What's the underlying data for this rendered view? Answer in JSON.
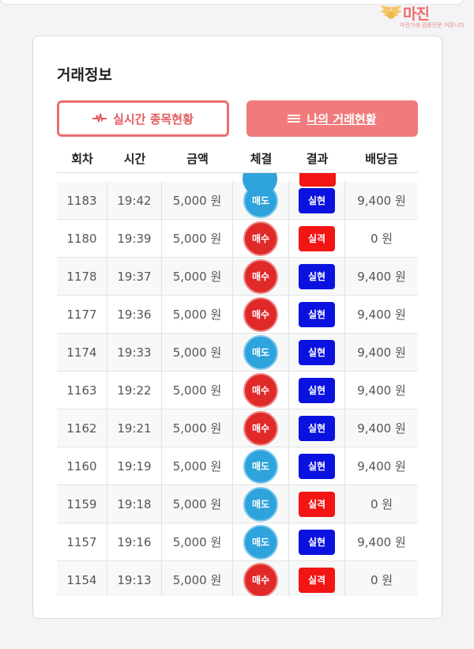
{
  "watermark": {
    "title": "마진",
    "sub": "마진거래 검증전문 커뮤니티"
  },
  "section_title": "거래정보",
  "buttons": {
    "live": "실시간 종목현황",
    "mine": "나의 거래현황"
  },
  "table": {
    "headers": [
      "회차",
      "시간",
      "금액",
      "체결",
      "결과",
      "배당금"
    ],
    "rows": [
      {
        "round": "1183",
        "time": "19:42",
        "amount": "5,000 원",
        "side": "매도",
        "result": "실현",
        "payout": "9,400 원"
      },
      {
        "round": "1180",
        "time": "19:39",
        "amount": "5,000 원",
        "side": "매수",
        "result": "실격",
        "payout": "0 원"
      },
      {
        "round": "1178",
        "time": "19:37",
        "amount": "5,000 원",
        "side": "매수",
        "result": "실현",
        "payout": "9,400 원"
      },
      {
        "round": "1177",
        "time": "19:36",
        "amount": "5,000 원",
        "side": "매수",
        "result": "실현",
        "payout": "9,400 원"
      },
      {
        "round": "1174",
        "time": "19:33",
        "amount": "5,000 원",
        "side": "매도",
        "result": "실현",
        "payout": "9,400 원"
      },
      {
        "round": "1163",
        "time": "19:22",
        "amount": "5,000 원",
        "side": "매수",
        "result": "실현",
        "payout": "9,400 원"
      },
      {
        "round": "1162",
        "time": "19:21",
        "amount": "5,000 원",
        "side": "매수",
        "result": "실현",
        "payout": "9,400 원"
      },
      {
        "round": "1160",
        "time": "19:19",
        "amount": "5,000 원",
        "side": "매도",
        "result": "실현",
        "payout": "9,400 원"
      },
      {
        "round": "1159",
        "time": "19:18",
        "amount": "5,000 원",
        "side": "매도",
        "result": "실격",
        "payout": "0 원"
      },
      {
        "round": "1157",
        "time": "19:16",
        "amount": "5,000 원",
        "side": "매도",
        "result": "실현",
        "payout": "9,400 원"
      },
      {
        "round": "1154",
        "time": "19:13",
        "amount": "5,000 원",
        "side": "매수",
        "result": "실격",
        "payout": "0 원"
      }
    ]
  },
  "colors": {
    "accent": "#f17a7c",
    "sell": "#2ea3dc",
    "buy": "#e02a2a",
    "win": "#0a12e0",
    "lose": "#f31414"
  },
  "icons": {
    "live_button": "pulse-icon",
    "mine_button": "list-icon"
  }
}
